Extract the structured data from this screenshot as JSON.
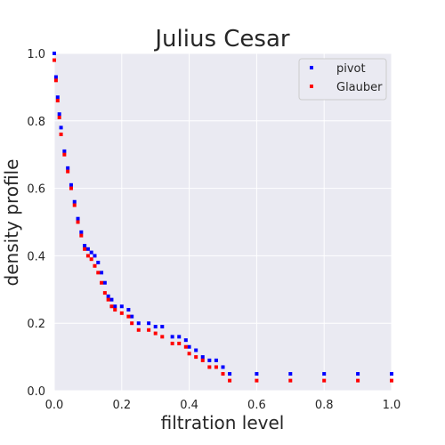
{
  "chart_data": {
    "type": "scatter",
    "title": "Julius Cesar",
    "xlabel": "filtration level",
    "ylabel": "density profile",
    "xlim": [
      0.0,
      1.0
    ],
    "ylim": [
      0.0,
      1.0
    ],
    "xticks": [
      "0.0",
      "0.2",
      "0.4",
      "0.6",
      "0.8",
      "1.0"
    ],
    "yticks": [
      "0.0",
      "0.2",
      "0.4",
      "0.6",
      "0.8",
      "1.0"
    ],
    "grid": true,
    "legend_position": "top-right",
    "series": [
      {
        "name": "pivot",
        "color": "#0000ff",
        "x": [
          0.0,
          0.005,
          0.01,
          0.015,
          0.02,
          0.03,
          0.04,
          0.05,
          0.06,
          0.07,
          0.08,
          0.09,
          0.1,
          0.11,
          0.12,
          0.13,
          0.14,
          0.15,
          0.16,
          0.17,
          0.18,
          0.2,
          0.22,
          0.23,
          0.25,
          0.28,
          0.3,
          0.32,
          0.35,
          0.37,
          0.39,
          0.4,
          0.42,
          0.44,
          0.46,
          0.48,
          0.5,
          0.52,
          0.6,
          0.7,
          0.8,
          0.9,
          1.0
        ],
        "y": [
          1.0,
          0.93,
          0.87,
          0.82,
          0.78,
          0.71,
          0.66,
          0.61,
          0.56,
          0.51,
          0.47,
          0.43,
          0.42,
          0.41,
          0.4,
          0.38,
          0.35,
          0.32,
          0.28,
          0.27,
          0.25,
          0.25,
          0.24,
          0.22,
          0.2,
          0.2,
          0.19,
          0.19,
          0.16,
          0.16,
          0.15,
          0.13,
          0.12,
          0.1,
          0.09,
          0.09,
          0.07,
          0.05,
          0.05,
          0.05,
          0.05,
          0.05,
          0.05
        ]
      },
      {
        "name": "Glauber",
        "color": "#ff0000",
        "x": [
          0.0,
          0.005,
          0.01,
          0.015,
          0.02,
          0.03,
          0.04,
          0.05,
          0.06,
          0.07,
          0.08,
          0.09,
          0.1,
          0.11,
          0.12,
          0.13,
          0.14,
          0.15,
          0.16,
          0.17,
          0.18,
          0.2,
          0.22,
          0.23,
          0.25,
          0.28,
          0.3,
          0.32,
          0.35,
          0.37,
          0.39,
          0.4,
          0.42,
          0.44,
          0.46,
          0.48,
          0.5,
          0.52,
          0.6,
          0.7,
          0.8,
          0.9,
          1.0
        ],
        "y": [
          0.98,
          0.92,
          0.86,
          0.81,
          0.76,
          0.7,
          0.65,
          0.6,
          0.55,
          0.5,
          0.46,
          0.42,
          0.4,
          0.39,
          0.37,
          0.35,
          0.32,
          0.29,
          0.27,
          0.25,
          0.24,
          0.23,
          0.22,
          0.2,
          0.18,
          0.18,
          0.17,
          0.16,
          0.14,
          0.14,
          0.13,
          0.11,
          0.1,
          0.09,
          0.07,
          0.07,
          0.05,
          0.03,
          0.03,
          0.03,
          0.03,
          0.03,
          0.03
        ]
      }
    ]
  }
}
